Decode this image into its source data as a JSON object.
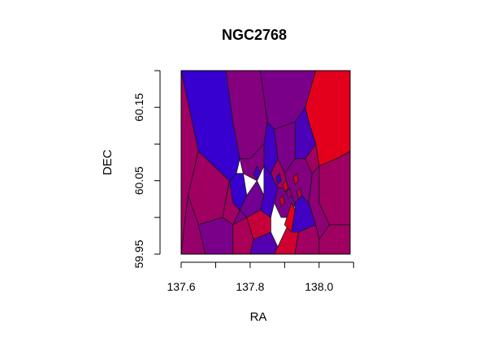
{
  "chart_data": {
    "type": "voronoi",
    "title": "NGC2768",
    "xlabel": "RA",
    "ylabel": "DEC",
    "xlim": [
      137.6,
      138.09
    ],
    "ylim": [
      59.95,
      60.2
    ],
    "x_ticks": [
      137.6,
      137.7,
      137.8,
      137.9,
      138.0,
      138.1
    ],
    "x_tick_labels": [
      "137.6",
      "137.8",
      "138.0"
    ],
    "x_tick_label_values": [
      137.6,
      137.8,
      138.0
    ],
    "y_ticks": [
      59.95,
      60.0,
      60.05,
      60.1,
      60.15,
      60.2
    ],
    "y_tick_labels": [
      "59.95",
      "60.05",
      "60.15"
    ],
    "y_tick_label_values": [
      59.95,
      60.05,
      60.15
    ],
    "color_scale": {
      "low": "#2f00d8",
      "high": "#ec0012"
    },
    "regions": [
      {
        "name": "top-left-blue",
        "ra": 137.71,
        "dec": 60.16,
        "value": 0.05,
        "poly": [
          [
            137.6,
            60.2
          ],
          [
            137.73,
            60.2
          ],
          [
            137.75,
            60.13
          ],
          [
            137.77,
            60.08
          ],
          [
            137.76,
            60.06
          ],
          [
            137.74,
            60.05
          ],
          [
            137.65,
            60.09
          ],
          [
            137.6,
            60.2
          ]
        ]
      },
      {
        "name": "top-center-purple",
        "ra": 137.79,
        "dec": 60.15,
        "value": 0.45,
        "poly": [
          [
            137.73,
            60.2
          ],
          [
            137.83,
            60.2
          ],
          [
            137.85,
            60.13
          ],
          [
            137.84,
            60.1
          ],
          [
            137.8,
            60.08
          ],
          [
            137.77,
            60.08
          ],
          [
            137.75,
            60.13
          ]
        ]
      },
      {
        "name": "top-purple-2",
        "ra": 137.92,
        "dec": 60.16,
        "value": 0.4,
        "poly": [
          [
            137.83,
            60.2
          ],
          [
            137.99,
            60.2
          ],
          [
            137.96,
            60.15
          ],
          [
            137.93,
            60.13
          ],
          [
            137.87,
            60.12
          ],
          [
            137.85,
            60.13
          ]
        ]
      },
      {
        "name": "top-right-red",
        "ra": 138.05,
        "dec": 60.15,
        "value": 0.95,
        "poly": [
          [
            137.99,
            60.2
          ],
          [
            138.09,
            60.2
          ],
          [
            138.09,
            60.09
          ],
          [
            138.05,
            60.08
          ],
          [
            138.0,
            60.07
          ],
          [
            137.99,
            60.1
          ],
          [
            137.97,
            60.13
          ],
          [
            137.96,
            60.15
          ]
        ]
      },
      {
        "name": "left-strip",
        "ra": 137.62,
        "dec": 60.05,
        "value": 0.6,
        "poly": [
          [
            137.6,
            60.2
          ],
          [
            137.65,
            60.09
          ],
          [
            137.62,
            60.03
          ],
          [
            137.6,
            59.95
          ]
        ]
      },
      {
        "name": "left-magenta",
        "ra": 137.65,
        "dec": 60.02,
        "value": 0.6,
        "poly": [
          [
            137.65,
            60.09
          ],
          [
            137.74,
            60.05
          ],
          [
            137.72,
            60.0
          ],
          [
            137.65,
            59.99
          ],
          [
            137.62,
            60.03
          ]
        ]
      },
      {
        "name": "bottom-left",
        "ra": 137.63,
        "dec": 59.97,
        "value": 0.55,
        "poly": [
          [
            137.62,
            60.03
          ],
          [
            137.65,
            59.99
          ],
          [
            137.67,
            59.95
          ],
          [
            137.6,
            59.95
          ]
        ]
      },
      {
        "name": "lower-left-purple",
        "ra": 137.7,
        "dec": 59.97,
        "value": 0.4,
        "poly": [
          [
            137.65,
            59.99
          ],
          [
            137.72,
            60.0
          ],
          [
            137.75,
            59.99
          ],
          [
            137.75,
            59.95
          ],
          [
            137.67,
            59.95
          ]
        ]
      },
      {
        "name": "lower-magenta",
        "ra": 137.78,
        "dec": 59.97,
        "value": 0.65,
        "poly": [
          [
            137.75,
            59.99
          ],
          [
            137.79,
            60.0
          ],
          [
            137.81,
            59.97
          ],
          [
            137.8,
            59.95
          ],
          [
            137.75,
            59.95
          ]
        ]
      },
      {
        "name": "lower-blue-purple",
        "ra": 137.84,
        "dec": 59.96,
        "value": 0.2,
        "poly": [
          [
            137.81,
            59.97
          ],
          [
            137.86,
            59.98
          ],
          [
            137.88,
            59.96
          ],
          [
            137.87,
            59.95
          ],
          [
            137.8,
            59.95
          ]
        ]
      },
      {
        "name": "lower-red",
        "ra": 137.9,
        "dec": 59.96,
        "value": 0.85,
        "poly": [
          [
            137.88,
            59.96
          ],
          [
            137.91,
            59.99
          ],
          [
            137.94,
            59.98
          ],
          [
            137.93,
            59.95
          ],
          [
            137.87,
            59.95
          ]
        ]
      },
      {
        "name": "lower-right-magenta",
        "ra": 137.97,
        "dec": 59.97,
        "value": 0.6,
        "poly": [
          [
            137.93,
            59.95
          ],
          [
            137.94,
            59.98
          ],
          [
            137.99,
            59.99
          ],
          [
            138.0,
            59.97
          ],
          [
            138.0,
            59.95
          ]
        ]
      },
      {
        "name": "bottom-right",
        "ra": 138.05,
        "dec": 59.97,
        "value": 0.6,
        "poly": [
          [
            138.0,
            59.95
          ],
          [
            138.0,
            59.97
          ],
          [
            138.03,
            59.99
          ],
          [
            138.09,
            59.99
          ],
          [
            138.09,
            59.95
          ]
        ]
      },
      {
        "name": "right-magenta",
        "ra": 138.05,
        "dec": 60.04,
        "value": 0.6,
        "poly": [
          [
            138.0,
            60.07
          ],
          [
            138.05,
            60.08
          ],
          [
            138.09,
            60.09
          ],
          [
            138.09,
            59.99
          ],
          [
            138.03,
            59.99
          ],
          [
            138.0,
            60.02
          ]
        ]
      },
      {
        "name": "right-purple-2",
        "ra": 137.99,
        "dec": 60.03,
        "value": 0.5,
        "poly": [
          [
            137.98,
            60.06
          ],
          [
            138.0,
            60.07
          ],
          [
            138.0,
            60.02
          ],
          [
            138.03,
            59.99
          ],
          [
            138.0,
            59.97
          ],
          [
            137.99,
            59.99
          ],
          [
            137.97,
            60.02
          ]
        ]
      },
      {
        "name": "right-of-center-blue",
        "ra": 137.95,
        "dec": 60.09,
        "value": 0.15,
        "poly": [
          [
            137.93,
            60.13
          ],
          [
            137.96,
            60.15
          ],
          [
            137.97,
            60.13
          ],
          [
            137.99,
            60.1
          ],
          [
            137.96,
            60.08
          ],
          [
            137.93,
            60.08
          ]
        ]
      },
      {
        "name": "upper-center-purple",
        "ra": 137.91,
        "dec": 60.09,
        "value": 0.4,
        "poly": [
          [
            137.87,
            60.12
          ],
          [
            137.93,
            60.13
          ],
          [
            137.93,
            60.08
          ],
          [
            137.9,
            60.06
          ],
          [
            137.88,
            60.08
          ]
        ]
      },
      {
        "name": "center-blue",
        "ra": 137.86,
        "dec": 60.09,
        "value": 0.1,
        "poly": [
          [
            137.84,
            60.1
          ],
          [
            137.85,
            60.13
          ],
          [
            137.87,
            60.12
          ],
          [
            137.88,
            60.08
          ],
          [
            137.86,
            60.06
          ],
          [
            137.84,
            60.07
          ]
        ]
      },
      {
        "name": "center-left-purple",
        "ra": 137.81,
        "dec": 60.08,
        "value": 0.45,
        "poly": [
          [
            137.77,
            60.08
          ],
          [
            137.8,
            60.08
          ],
          [
            137.84,
            60.1
          ],
          [
            137.84,
            60.07
          ],
          [
            137.82,
            60.05
          ],
          [
            137.78,
            60.06
          ]
        ]
      },
      {
        "name": "inner-blue-1",
        "ra": 137.77,
        "dec": 60.04,
        "value": 0.05,
        "poly": [
          [
            137.74,
            60.05
          ],
          [
            137.76,
            60.06
          ],
          [
            137.78,
            60.06
          ],
          [
            137.79,
            60.03
          ],
          [
            137.77,
            60.01
          ],
          [
            137.75,
            60.02
          ]
        ]
      },
      {
        "name": "inner-magenta-1",
        "ra": 137.74,
        "dec": 60.01,
        "value": 0.6,
        "poly": [
          [
            137.72,
            60.0
          ],
          [
            137.74,
            60.05
          ],
          [
            137.75,
            60.02
          ],
          [
            137.77,
            60.01
          ],
          [
            137.75,
            59.99
          ]
        ]
      },
      {
        "name": "inner-purple-1",
        "ra": 137.8,
        "dec": 60.02,
        "value": 0.35,
        "poly": [
          [
            137.79,
            60.03
          ],
          [
            137.82,
            60.05
          ],
          [
            137.84,
            60.03
          ],
          [
            137.83,
            60.01
          ],
          [
            137.79,
            60.0
          ],
          [
            137.77,
            60.01
          ]
        ]
      },
      {
        "name": "inner-red-1",
        "ra": 137.85,
        "dec": 59.99,
        "value": 0.8,
        "poly": [
          [
            137.79,
            60.0
          ],
          [
            137.83,
            60.01
          ],
          [
            137.86,
            60.0
          ],
          [
            137.86,
            59.98
          ],
          [
            137.81,
            59.97
          ]
        ]
      },
      {
        "name": "core-blue",
        "ra": 137.86,
        "dec": 60.04,
        "value": 0.1,
        "poly": [
          [
            137.84,
            60.03
          ],
          [
            137.84,
            60.07
          ],
          [
            137.86,
            60.06
          ],
          [
            137.88,
            60.04
          ],
          [
            137.87,
            60.02
          ],
          [
            137.86,
            60.0
          ],
          [
            137.83,
            60.01
          ]
        ]
      },
      {
        "name": "core-magenta",
        "ra": 137.89,
        "dec": 60.05,
        "value": 0.6,
        "poly": [
          [
            137.86,
            60.06
          ],
          [
            137.88,
            60.08
          ],
          [
            137.9,
            60.06
          ],
          [
            137.91,
            60.04
          ],
          [
            137.88,
            60.04
          ]
        ]
      },
      {
        "name": "core-purple",
        "ra": 137.91,
        "dec": 60.02,
        "value": 0.4,
        "poly": [
          [
            137.88,
            60.04
          ],
          [
            137.91,
            60.04
          ],
          [
            137.93,
            60.02
          ],
          [
            137.92,
            60.0
          ],
          [
            137.89,
            60.0
          ],
          [
            137.87,
            60.02
          ]
        ]
      },
      {
        "name": "core-red",
        "ra": 137.92,
        "dec": 60.0,
        "value": 0.95,
        "poly": [
          [
            137.9,
            59.99
          ],
          [
            137.92,
            60.02
          ],
          [
            137.93,
            60.01
          ],
          [
            137.92,
            59.98
          ]
        ]
      },
      {
        "name": "core-blue-right",
        "ra": 137.95,
        "dec": 60.0,
        "value": 0.1,
        "poly": [
          [
            137.93,
            60.02
          ],
          [
            137.95,
            60.03
          ],
          [
            137.97,
            60.02
          ],
          [
            137.99,
            59.99
          ],
          [
            137.94,
            59.98
          ],
          [
            137.92,
            59.98
          ],
          [
            137.93,
            60.01
          ]
        ]
      },
      {
        "name": "right-inner-purple",
        "ra": 137.95,
        "dec": 60.06,
        "value": 0.45,
        "poly": [
          [
            137.9,
            60.06
          ],
          [
            137.93,
            60.08
          ],
          [
            137.96,
            60.08
          ],
          [
            137.98,
            60.06
          ],
          [
            137.97,
            60.02
          ],
          [
            137.95,
            60.03
          ],
          [
            137.93,
            60.02
          ],
          [
            137.91,
            60.04
          ]
        ]
      },
      {
        "name": "right-inner-magenta",
        "ra": 137.97,
        "dec": 60.08,
        "value": 0.6,
        "poly": [
          [
            137.96,
            60.08
          ],
          [
            137.99,
            60.1
          ],
          [
            138.0,
            60.07
          ],
          [
            137.98,
            60.06
          ]
        ]
      },
      {
        "name": "left-inner-purple",
        "ra": 137.77,
        "dec": 60.0,
        "value": 0.4,
        "poly": [
          [
            137.75,
            59.99
          ],
          [
            137.77,
            60.01
          ],
          [
            137.79,
            60.0
          ],
          [
            137.79,
            60.0
          ],
          [
            137.75,
            59.99
          ]
        ]
      },
      {
        "name": "tiny-blue-a",
        "ra": 137.82,
        "dec": 60.06,
        "value": 0.1,
        "poly": [
          [
            137.81,
            60.06
          ],
          [
            137.82,
            60.07
          ],
          [
            137.83,
            60.06
          ],
          [
            137.82,
            60.05
          ]
        ]
      },
      {
        "name": "tiny-red-a",
        "ra": 137.9,
        "dec": 60.04,
        "value": 0.9,
        "poly": [
          [
            137.895,
            60.045
          ],
          [
            137.905,
            60.05
          ],
          [
            137.91,
            60.04
          ],
          [
            137.9,
            60.035
          ]
        ]
      },
      {
        "name": "tiny-red-b",
        "ra": 137.93,
        "dec": 60.05,
        "value": 0.9,
        "poly": [
          [
            137.925,
            60.055
          ],
          [
            137.935,
            60.06
          ],
          [
            137.94,
            60.05
          ],
          [
            137.93,
            60.045
          ]
        ]
      },
      {
        "name": "tiny-red-c",
        "ra": 137.89,
        "dec": 60.02,
        "value": 0.85,
        "poly": [
          [
            137.885,
            60.025
          ],
          [
            137.895,
            60.03
          ],
          [
            137.9,
            60.02
          ],
          [
            137.89,
            60.015
          ]
        ]
      },
      {
        "name": "tiny-blue-b",
        "ra": 137.88,
        "dec": 60.05,
        "value": 0.05,
        "poly": [
          [
            137.875,
            60.055
          ],
          [
            137.885,
            60.06
          ],
          [
            137.89,
            60.05
          ],
          [
            137.88,
            60.045
          ]
        ]
      },
      {
        "name": "tiny-purple-c",
        "ra": 137.91,
        "dec": 60.03,
        "value": 0.5,
        "poly": [
          [
            137.905,
            60.035
          ],
          [
            137.915,
            60.04
          ],
          [
            137.92,
            60.03
          ],
          [
            137.91,
            60.025
          ]
        ]
      },
      {
        "name": "tiny-magenta-d",
        "ra": 137.94,
        "dec": 60.03,
        "value": 0.7,
        "poly": [
          [
            137.935,
            60.035
          ],
          [
            137.945,
            60.04
          ],
          [
            137.95,
            60.03
          ],
          [
            137.94,
            60.025
          ]
        ]
      }
    ]
  }
}
